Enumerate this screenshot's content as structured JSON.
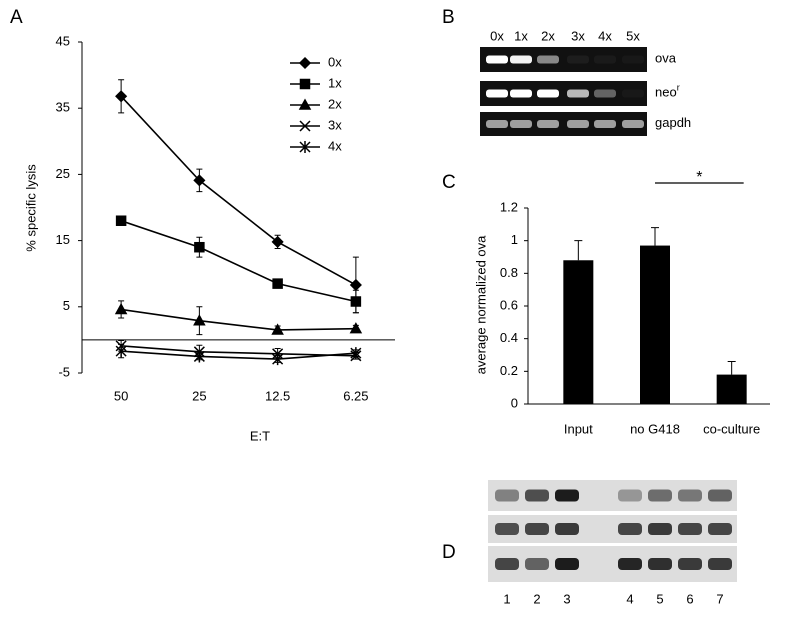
{
  "chart_data": [
    {
      "type": "line",
      "panel_label": "A",
      "y_label": "% specific lysis",
      "x_label": "E:T",
      "categories": [
        "50",
        "25",
        "12.5",
        "6.25"
      ],
      "ylim": [
        -5,
        45
      ],
      "yticks": [
        -5,
        5,
        15,
        25,
        35,
        45
      ],
      "series": [
        {
          "name": "0x",
          "color": "#000000",
          "marker": "diamond",
          "values": [
            36.8,
            24.1,
            14.8,
            8.3
          ],
          "errors": [
            2.5,
            1.7,
            1.0,
            4.2
          ]
        },
        {
          "name": "1x",
          "color": "#000000",
          "marker": "square",
          "values": [
            18.0,
            14.0,
            8.5,
            5.8
          ],
          "errors": [
            0.3,
            1.5,
            0.3,
            1.7
          ]
        },
        {
          "name": "2x",
          "color": "#000000",
          "marker": "triangle",
          "values": [
            4.6,
            2.9,
            1.5,
            1.7
          ],
          "errors": [
            1.3,
            2.1,
            0.6,
            0.5
          ]
        },
        {
          "name": "3x",
          "color": "#000000",
          "marker": "x",
          "values": [
            -0.9,
            -1.8,
            -2.1,
            -2.4
          ],
          "errors": [
            0.8,
            1.0,
            0.8,
            0.5
          ]
        },
        {
          "name": "4x",
          "color": "#000000",
          "marker": "asterisk",
          "values": [
            -1.7,
            -2.5,
            -2.9,
            -2.0
          ],
          "errors": [
            1.0,
            0.5,
            0.5,
            0.5
          ]
        }
      ]
    },
    {
      "type": "bar",
      "panel_label": "C",
      "y_label": "average normalized ova",
      "categories": [
        "Input",
        "no G418",
        "co-culture"
      ],
      "values": [
        0.88,
        0.97,
        0.18
      ],
      "errors": [
        0.12,
        0.11,
        0.08
      ],
      "color": "#000000",
      "ylim": [
        0,
        1.2
      ],
      "yticks": [
        0,
        0.2,
        0.4,
        0.6,
        0.8,
        1,
        1.2
      ],
      "significance": "*"
    }
  ],
  "gel_b": {
    "panel_label": "B",
    "lanes": [
      "0x",
      "1x",
      "2x",
      "3x",
      "4x",
      "5x"
    ],
    "rows": [
      {
        "label": "ova"
      },
      {
        "label": "neo",
        "sup": "r"
      },
      {
        "label": "gapdh"
      }
    ]
  },
  "gel_d": {
    "panel_label": "D",
    "lanes": [
      "1",
      "2",
      "3",
      "4",
      "5",
      "6",
      "7"
    ]
  }
}
